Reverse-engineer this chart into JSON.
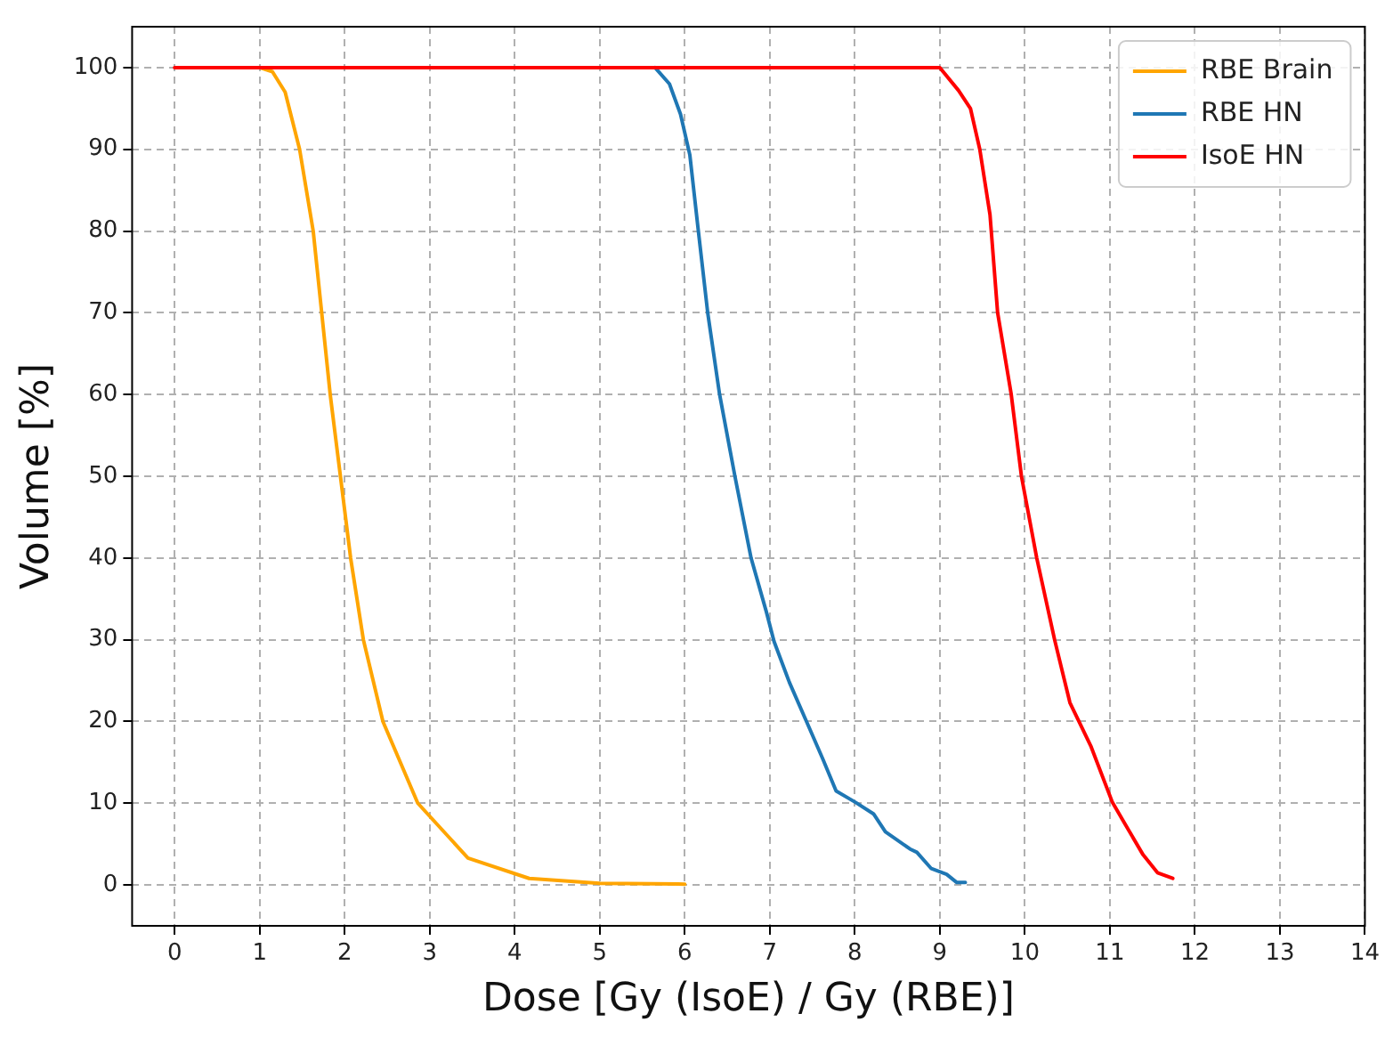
{
  "chart_data": {
    "type": "line",
    "xlabel": "Dose [Gy (IsoE) / Gy (RBE)]",
    "ylabel": "Volume [%]",
    "xlim": [
      -0.5,
      14
    ],
    "xticks": [
      0,
      1,
      2,
      3,
      4,
      5,
      6,
      7,
      8,
      9,
      10,
      11,
      12,
      13,
      14
    ],
    "ylim": [
      -5,
      105
    ],
    "yticks": [
      0,
      10,
      20,
      30,
      40,
      50,
      60,
      70,
      80,
      90,
      100
    ],
    "grid": true,
    "legend": "top right",
    "marker": "none",
    "line_style": "solid",
    "series": [
      {
        "name": "RBE Brain",
        "color": "#ffa500",
        "x": [
          1,
          1.15,
          1.3,
          1.47,
          1.63,
          1.73,
          1.83,
          1.95,
          2.07,
          2.22,
          2.45,
          2.86,
          3.45,
          4.17,
          5,
          6
        ],
        "values": [
          100,
          99.5,
          97,
          90,
          80,
          70,
          60,
          50,
          40,
          30,
          20,
          10,
          3.3,
          0.8,
          0.2,
          0.1
        ]
      },
      {
        "name": "RBE HN",
        "color": "#1f77b4",
        "x": [
          5.65,
          5.82,
          5.95,
          6.06,
          6.16,
          6.27,
          6.41,
          6.59,
          6.78,
          6.96,
          7.05,
          7.23,
          7.44,
          7.62,
          7.78,
          8.01,
          8.22,
          8.36,
          8.65,
          8.73,
          8.9,
          9.08,
          9.2,
          9.3
        ],
        "values": [
          100,
          98,
          94.3,
          89.3,
          80,
          70,
          60,
          50,
          40,
          33.4,
          29.8,
          24.8,
          19.8,
          15.5,
          11.5,
          10.1,
          8.7,
          6.5,
          4.4,
          4.0,
          2.0,
          1.3,
          0.3,
          0.3
        ]
      },
      {
        "name": "IsoE HN",
        "color": "#ff0000",
        "x": [
          0,
          9.0,
          9.22,
          9.36,
          9.47,
          9.59,
          9.68,
          9.84,
          9.96,
          10.14,
          10.35,
          10.53,
          10.78,
          11.03,
          11.17,
          11.39,
          11.56,
          11.74
        ],
        "values": [
          100,
          100,
          97.2,
          95,
          90,
          82,
          70,
          60,
          50,
          40,
          30,
          22.3,
          16.9,
          10.1,
          7.6,
          3.7,
          1.5,
          0.8
        ]
      }
    ]
  }
}
